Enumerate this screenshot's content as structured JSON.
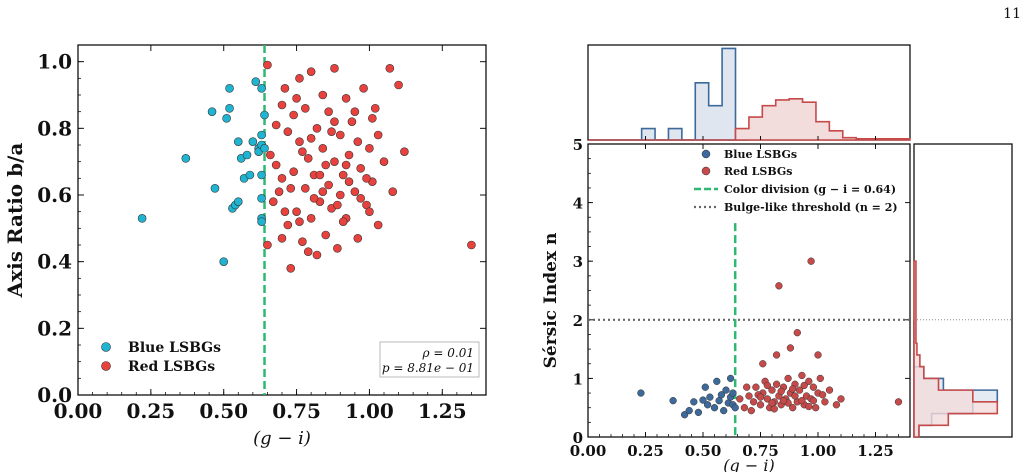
{
  "page_number": "11",
  "colors": {
    "blue_left": "#1fb4d2",
    "red_left": "#e8423f",
    "blue_right": "#3d6a9a",
    "red_right": "#c64a4a",
    "division": "#2eb872",
    "threshold": "#666666",
    "hist_blue_fill": "#dfe6f0",
    "hist_red_fill": "#f3dcdc"
  },
  "chart_data": [
    {
      "type": "scatter",
      "xlabel": "(g − i)",
      "ylabel": "Axis Ratio b/a",
      "xlim": [
        0.0,
        1.4
      ],
      "ylim": [
        0.0,
        1.05
      ],
      "xticks": [
        "0.00",
        "0.25",
        "0.50",
        "0.75",
        "1.00",
        "1.25"
      ],
      "yticks": [
        "0.0",
        "0.2",
        "0.4",
        "0.6",
        "0.8",
        "1.0"
      ],
      "legend_position": "lower-left",
      "division_x": 0.64,
      "stats": [
        "ρ = 0.01",
        "p = 8.81e − 01"
      ],
      "series": [
        {
          "name": "Blue LSBGs",
          "points": [
            [
              0.22,
              0.53
            ],
            [
              0.37,
              0.71
            ],
            [
              0.46,
              0.85
            ],
            [
              0.47,
              0.62
            ],
            [
              0.5,
              0.4
            ],
            [
              0.51,
              0.83
            ],
            [
              0.52,
              0.92
            ],
            [
              0.52,
              0.86
            ],
            [
              0.53,
              0.56
            ],
            [
              0.54,
              0.57
            ],
            [
              0.55,
              0.76
            ],
            [
              0.55,
              0.58
            ],
            [
              0.56,
              0.71
            ],
            [
              0.57,
              0.65
            ],
            [
              0.58,
              0.72
            ],
            [
              0.59,
              0.66
            ],
            [
              0.6,
              0.76
            ],
            [
              0.61,
              0.94
            ],
            [
              0.62,
              0.74
            ],
            [
              0.62,
              0.73
            ],
            [
              0.63,
              0.92
            ],
            [
              0.63,
              0.78
            ],
            [
              0.63,
              0.75
            ],
            [
              0.63,
              0.66
            ],
            [
              0.63,
              0.59
            ],
            [
              0.63,
              0.53
            ],
            [
              0.63,
              0.52
            ],
            [
              0.64,
              0.84
            ],
            [
              0.64,
              0.74
            ]
          ]
        },
        {
          "name": "Red LSBGs",
          "points": [
            [
              0.65,
              0.99
            ],
            [
              0.65,
              0.45
            ],
            [
              0.66,
              0.72
            ],
            [
              0.67,
              0.58
            ],
            [
              0.68,
              0.81
            ],
            [
              0.69,
              0.61
            ],
            [
              0.7,
              0.65
            ],
            [
              0.7,
              0.47
            ],
            [
              0.71,
              0.92
            ],
            [
              0.72,
              0.79
            ],
            [
              0.72,
              0.51
            ],
            [
              0.73,
              0.38
            ],
            [
              0.74,
              0.67
            ],
            [
              0.74,
              0.84
            ],
            [
              0.75,
              0.55
            ],
            [
              0.76,
              0.76
            ],
            [
              0.76,
              0.95
            ],
            [
              0.77,
              0.46
            ],
            [
              0.78,
              0.62
            ],
            [
              0.78,
              0.86
            ],
            [
              0.79,
              0.71
            ],
            [
              0.8,
              0.53
            ],
            [
              0.8,
              0.97
            ],
            [
              0.81,
              0.66
            ],
            [
              0.82,
              0.8
            ],
            [
              0.82,
              0.42
            ],
            [
              0.83,
              0.58
            ],
            [
              0.84,
              0.9
            ],
            [
              0.84,
              0.74
            ],
            [
              0.85,
              0.48
            ],
            [
              0.86,
              0.63
            ],
            [
              0.86,
              0.85
            ],
            [
              0.87,
              0.56
            ],
            [
              0.88,
              0.7
            ],
            [
              0.88,
              0.98
            ],
            [
              0.89,
              0.44
            ],
            [
              0.9,
              0.78
            ],
            [
              0.9,
              0.6
            ],
            [
              0.91,
              0.66
            ],
            [
              0.92,
              0.89
            ],
            [
              0.92,
              0.53
            ],
            [
              0.93,
              0.72
            ],
            [
              0.94,
              0.82
            ],
            [
              0.95,
              0.61
            ],
            [
              0.96,
              0.47
            ],
            [
              0.97,
              0.68
            ],
            [
              0.98,
              0.92
            ],
            [
              0.99,
              0.57
            ],
            [
              1.0,
              0.74
            ],
            [
              1.01,
              0.64
            ],
            [
              1.02,
              0.86
            ],
            [
              1.03,
              0.51
            ],
            [
              1.05,
              0.7
            ],
            [
              1.07,
              0.98
            ],
            [
              1.08,
              0.61
            ],
            [
              1.1,
              0.93
            ],
            [
              1.12,
              0.73
            ],
            [
              1.35,
              0.45
            ],
            [
              0.68,
              0.69
            ],
            [
              0.71,
              0.55
            ],
            [
              0.75,
              0.89
            ],
            [
              0.79,
              0.43
            ],
            [
              0.83,
              0.66
            ],
            [
              0.87,
              0.79
            ],
            [
              0.91,
              0.52
            ],
            [
              0.95,
              0.85
            ],
            [
              0.99,
              0.65
            ],
            [
              1.03,
              0.78
            ],
            [
              0.73,
              0.62
            ],
            [
              0.77,
              0.73
            ],
            [
              0.81,
              0.59
            ],
            [
              0.85,
              0.69
            ],
            [
              0.89,
              0.57
            ],
            [
              0.93,
              0.64
            ],
            [
              0.97,
              0.59
            ],
            [
              1.01,
              0.83
            ],
            [
              0.7,
              0.87
            ],
            [
              0.76,
              0.52
            ],
            [
              0.8,
              0.77
            ],
            [
              0.84,
              0.61
            ],
            [
              0.88,
              0.82
            ],
            [
              0.92,
              0.69
            ],
            [
              0.96,
              0.76
            ],
            [
              1.0,
              0.55
            ]
          ]
        }
      ]
    },
    {
      "type": "scatter",
      "xlabel": "(g − i)",
      "ylabel": "Sérsic Index n",
      "xlim": [
        0.0,
        1.4
      ],
      "ylim": [
        0.0,
        5.0
      ],
      "xticks": [
        "0.00",
        "0.25",
        "0.50",
        "0.75",
        "1.00",
        "1.25"
      ],
      "yticks": [
        "0",
        "1",
        "2",
        "3",
        "4",
        "5"
      ],
      "legend_position": "top-right",
      "division_x": 0.64,
      "threshold_y": 2,
      "legend": [
        "Blue LSBGs",
        "Red LSBGs",
        "Color division (g − i = 0.64)",
        "Bulge-like threshold (n = 2)"
      ],
      "series": [
        {
          "name": "Blue LSBGs",
          "points": [
            [
              0.23,
              0.75
            ],
            [
              0.37,
              0.62
            ],
            [
              0.42,
              0.38
            ],
            [
              0.44,
              0.45
            ],
            [
              0.46,
              0.6
            ],
            [
              0.48,
              0.42
            ],
            [
              0.5,
              0.63
            ],
            [
              0.51,
              0.85
            ],
            [
              0.52,
              0.55
            ],
            [
              0.53,
              0.68
            ],
            [
              0.55,
              0.5
            ],
            [
              0.56,
              0.95
            ],
            [
              0.57,
              0.62
            ],
            [
              0.58,
              0.72
            ],
            [
              0.59,
              0.45
            ],
            [
              0.6,
              0.8
            ],
            [
              0.61,
              0.58
            ],
            [
              0.62,
              0.68
            ],
            [
              0.62,
              1.0
            ],
            [
              0.63,
              0.55
            ],
            [
              0.63,
              0.75
            ],
            [
              0.64,
              0.5
            ]
          ]
        },
        {
          "name": "Red LSBGs",
          "points": [
            [
              0.83,
              2.58
            ],
            [
              0.97,
              3.0
            ],
            [
              0.91,
              1.78
            ],
            [
              0.88,
              1.52
            ],
            [
              0.82,
              1.4
            ],
            [
              0.76,
              1.25
            ],
            [
              1.0,
              1.4
            ],
            [
              0.68,
              0.5
            ],
            [
              0.7,
              0.7
            ],
            [
              0.72,
              0.6
            ],
            [
              0.73,
              0.85
            ],
            [
              0.75,
              0.55
            ],
            [
              0.76,
              0.75
            ],
            [
              0.77,
              0.95
            ],
            [
              0.78,
              0.65
            ],
            [
              0.79,
              0.5
            ],
            [
              0.8,
              0.8
            ],
            [
              0.81,
              0.6
            ],
            [
              0.82,
              0.9
            ],
            [
              0.83,
              0.7
            ],
            [
              0.84,
              0.55
            ],
            [
              0.85,
              0.85
            ],
            [
              0.86,
              0.65
            ],
            [
              0.87,
              1.0
            ],
            [
              0.88,
              0.75
            ],
            [
              0.89,
              0.5
            ],
            [
              0.9,
              0.9
            ],
            [
              0.91,
              0.6
            ],
            [
              0.92,
              0.8
            ],
            [
              0.93,
              1.05
            ],
            [
              0.94,
              0.55
            ],
            [
              0.95,
              0.7
            ],
            [
              0.96,
              0.95
            ],
            [
              0.97,
              0.65
            ],
            [
              0.98,
              0.85
            ],
            [
              0.99,
              0.5
            ],
            [
              1.0,
              0.75
            ],
            [
              1.01,
              1.0
            ],
            [
              1.03,
              0.6
            ],
            [
              1.05,
              0.8
            ],
            [
              1.08,
              0.55
            ],
            [
              1.1,
              0.65
            ],
            [
              1.35,
              0.6
            ],
            [
              0.71,
              0.45
            ],
            [
              0.74,
              0.72
            ],
            [
              0.78,
              0.88
            ],
            [
              0.81,
              0.48
            ],
            [
              0.84,
              0.78
            ],
            [
              0.87,
              0.58
            ],
            [
              0.9,
              0.7
            ],
            [
              0.93,
              0.62
            ],
            [
              0.96,
              0.52
            ],
            [
              0.66,
              0.65
            ],
            [
              0.69,
              0.85
            ],
            [
              0.75,
              0.68
            ],
            [
              0.8,
              0.58
            ],
            [
              0.85,
              0.62
            ],
            [
              0.89,
              0.82
            ],
            [
              0.94,
              0.88
            ],
            [
              0.98,
              0.62
            ],
            [
              1.02,
              0.72
            ]
          ]
        }
      ]
    },
    {
      "type": "histogram",
      "orientation": "vertical",
      "xlim": [
        0.0,
        1.4
      ],
      "x_start": 0.0,
      "bin_width": 0.0583,
      "series": [
        {
          "name": "Blue LSBGs",
          "counts": [
            0,
            0,
            0,
            0,
            1,
            0,
            1,
            0,
            5,
            3,
            8,
            0
          ]
        },
        {
          "name": "Red LSBGs",
          "counts": [
            0,
            0,
            0,
            0,
            0,
            0,
            0,
            0,
            0,
            0,
            0,
            1,
            2,
            3,
            3.5,
            3.6,
            3.3,
            1.6,
            0.8,
            0.2,
            0.1,
            0.1,
            0.1,
            0.1
          ]
        }
      ]
    },
    {
      "type": "histogram",
      "orientation": "horizontal",
      "ylim": [
        0.0,
        5.0
      ],
      "y_start": 0.0,
      "bin_width": 0.2,
      "series": [
        {
          "name": "Blue LSBGs",
          "counts": [
            0.05,
            0.18,
            0.6,
            0.85,
            0.3,
            0.1,
            0,
            0,
            0,
            0
          ]
        },
        {
          "name": "Red LSBGs",
          "counts": [
            0.05,
            0.35,
            0.85,
            0.6,
            0.25,
            0.1,
            0.06,
            0.03,
            0.02,
            0.02,
            0.02,
            0.02,
            0.02,
            0.02,
            0.02
          ]
        }
      ],
      "threshold_y": 2
    }
  ]
}
